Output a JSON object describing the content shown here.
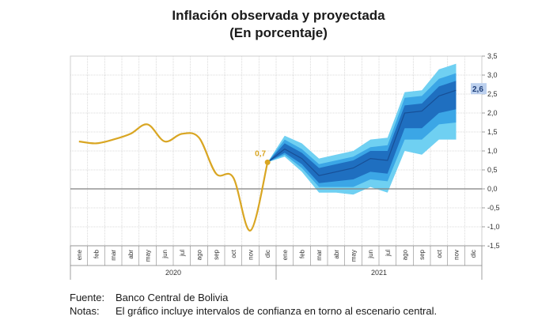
{
  "title": "Inflación observada y proyectada",
  "subtitle": "(En porcentaje)",
  "source_label": "Fuente:",
  "source_text": "Banco Central de Bolivia",
  "notes_label": "Notas:",
  "notes_text": "El gráfico incluye intervalos de confianza en torno al escenario central.",
  "colors": {
    "observed": "#d9a623",
    "band_outer": "#6fd0f2",
    "band_mid": "#3ba6e6",
    "band_inner": "#1f6fc0",
    "grid": "#cfcfcf",
    "zero_line": "#7f7f7f",
    "label_bg": "#bcd0ee"
  },
  "chart_data": {
    "type": "area",
    "y_range": [
      -1.5,
      3.5
    ],
    "y_ticks": [
      "3,5",
      "3,0",
      "2,5",
      "2,0",
      "1,5",
      "1,0",
      "0,5",
      "0,0",
      "-0,5",
      "-1,0",
      "-1,5"
    ],
    "grid": true,
    "months": [
      "ene",
      "feb",
      "mar",
      "abr",
      "may",
      "jun",
      "jul",
      "ago",
      "sep",
      "oct",
      "nov",
      "dic",
      "ene",
      "feb",
      "mar",
      "abr",
      "may",
      "jun",
      "jul",
      "ago",
      "sep",
      "oct",
      "nov",
      "dic"
    ],
    "years": [
      "2020",
      "2021"
    ],
    "observed": {
      "values": [
        1.25,
        1.2,
        1.3,
        1.45,
        1.7,
        1.25,
        1.45,
        1.35,
        0.4,
        0.3,
        -1.1,
        0.7
      ],
      "last_label": "0,7"
    },
    "projection": {
      "central_end_label": "2,6",
      "central": [
        0.7,
        1.05,
        0.8,
        0.35,
        0.45,
        0.55,
        0.8,
        0.75,
        2.0,
        2.05,
        2.45,
        2.6
      ],
      "lower_outer": [
        0.7,
        0.85,
        0.45,
        -0.1,
        -0.1,
        -0.15,
        0.05,
        -0.1,
        1.0,
        0.9,
        1.3,
        1.3
      ],
      "upper_outer": [
        0.7,
        1.4,
        1.2,
        0.8,
        0.9,
        1.0,
        1.3,
        1.35,
        2.55,
        2.6,
        3.15,
        3.3
      ],
      "lower_mid": [
        0.7,
        0.9,
        0.55,
        0.05,
        0.05,
        0.05,
        0.25,
        0.2,
        1.3,
        1.3,
        1.7,
        1.75
      ],
      "upper_mid": [
        0.7,
        1.3,
        1.05,
        0.65,
        0.75,
        0.85,
        1.1,
        1.15,
        2.4,
        2.45,
        2.9,
        3.05
      ],
      "lower_inner": [
        0.7,
        0.95,
        0.65,
        0.15,
        0.2,
        0.25,
        0.45,
        0.4,
        1.6,
        1.6,
        2.0,
        2.1
      ],
      "upper_inner": [
        0.7,
        1.2,
        0.95,
        0.55,
        0.65,
        0.75,
        1.0,
        1.0,
        2.2,
        2.25,
        2.7,
        2.85
      ]
    }
  }
}
